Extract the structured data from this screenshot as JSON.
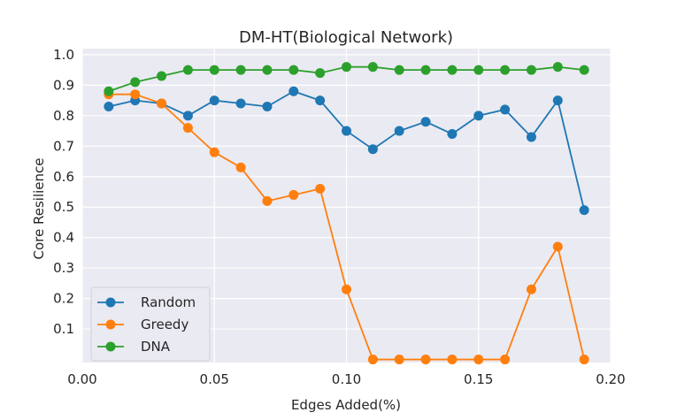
{
  "chart_data": {
    "type": "line",
    "title": "DM-HT(Biological Network)",
    "xlabel": "Edges Added(%)",
    "ylabel": "Core Resilience",
    "xlim": [
      0.0,
      0.2
    ],
    "ylim": [
      -0.01,
      1.02
    ],
    "xticks": [
      0.0,
      0.05,
      0.1,
      0.15,
      0.2
    ],
    "xtick_labels": [
      "0.00",
      "0.05",
      "0.10",
      "0.15",
      "0.20"
    ],
    "yticks": [
      0.1,
      0.2,
      0.3,
      0.4,
      0.5,
      0.6,
      0.7,
      0.8,
      0.9,
      1.0
    ],
    "ytick_labels": [
      "0.1",
      "0.2",
      "0.3",
      "0.4",
      "0.5",
      "0.6",
      "0.7",
      "0.8",
      "0.9",
      "1.0"
    ],
    "grid": true,
    "legend_position": "lower-left",
    "x": [
      0.01,
      0.02,
      0.03,
      0.04,
      0.05,
      0.06,
      0.07,
      0.08,
      0.09,
      0.1,
      0.11,
      0.12,
      0.13,
      0.14,
      0.15,
      0.16,
      0.17,
      0.18,
      0.19
    ],
    "series": [
      {
        "name": "Random",
        "color": "#1f77b4",
        "values": [
          0.83,
          0.85,
          0.84,
          0.8,
          0.85,
          0.84,
          0.83,
          0.88,
          0.85,
          0.75,
          0.69,
          0.75,
          0.78,
          0.74,
          0.8,
          0.82,
          0.73,
          0.85,
          0.49
        ]
      },
      {
        "name": "Greedy",
        "color": "#ff7f0e",
        "values": [
          0.87,
          0.87,
          0.84,
          0.76,
          0.68,
          0.63,
          0.52,
          0.54,
          0.56,
          0.23,
          0.0,
          0.0,
          0.0,
          0.0,
          0.0,
          0.0,
          0.23,
          0.37,
          0.0
        ]
      },
      {
        "name": "DNA",
        "color": "#2ca02c",
        "values": [
          0.88,
          0.91,
          0.93,
          0.95,
          0.95,
          0.95,
          0.95,
          0.95,
          0.94,
          0.96,
          0.96,
          0.95,
          0.95,
          0.95,
          0.95,
          0.95,
          0.95,
          0.96,
          0.95
        ]
      }
    ]
  }
}
